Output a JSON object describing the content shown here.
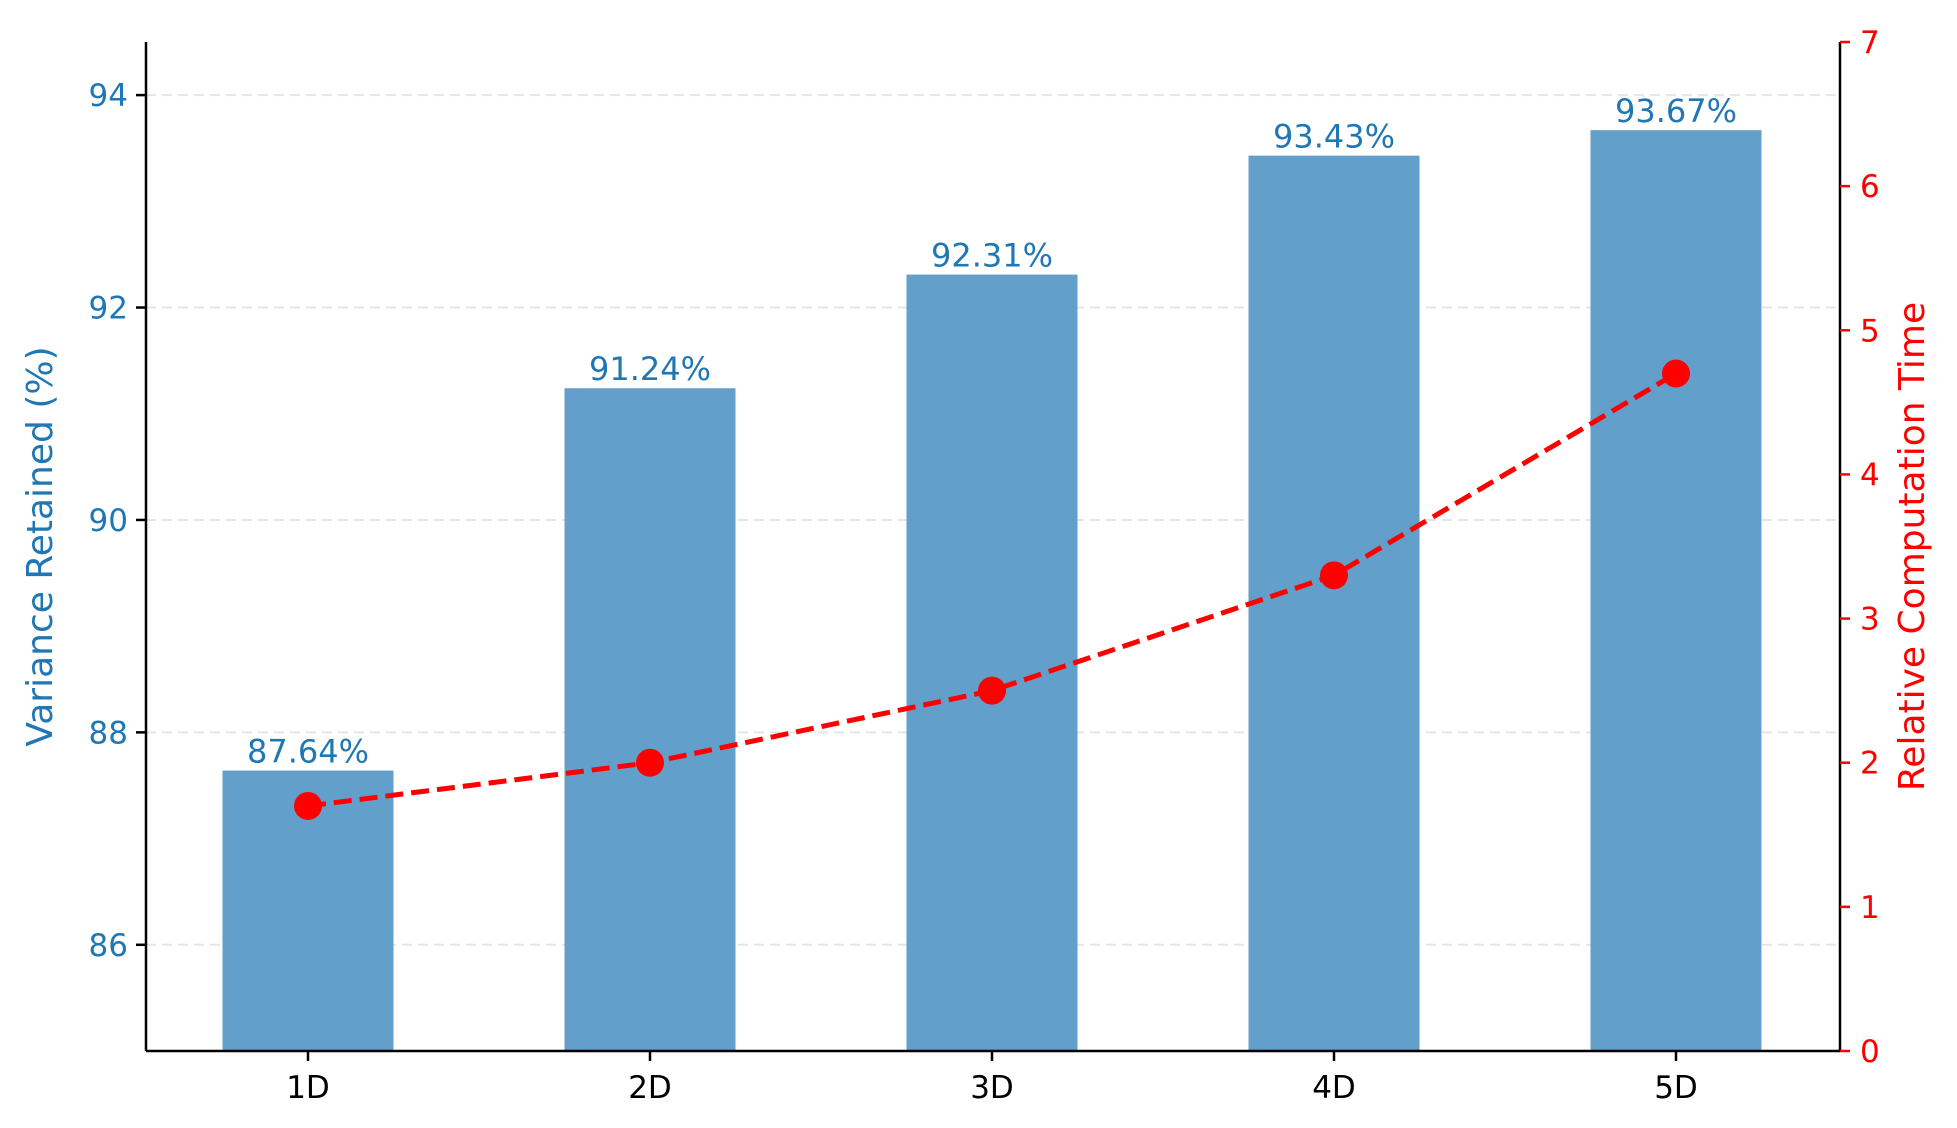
{
  "chart_data": {
    "type": "bar",
    "categories": [
      "1D",
      "2D",
      "3D",
      "4D",
      "5D"
    ],
    "series": [
      {
        "values": [
          87.64,
          91.24,
          92.31,
          93.43,
          93.67
        ],
        "axis": "left",
        "chart_type": "bar",
        "data_labels": [
          "87.64%",
          "91.24%",
          "92.31%",
          "93.43%",
          "93.67%"
        ]
      },
      {
        "values": [
          1.7,
          2.0,
          2.5,
          3.3,
          4.7
        ],
        "axis": "right",
        "chart_type": "line"
      }
    ],
    "title": "",
    "xlabel": "",
    "ylabel": "Variance Retained (%)",
    "y2label": "Relative Computation Time",
    "ylim": [
      85,
      94.5
    ],
    "y2lim": [
      0,
      7
    ],
    "yticks": [
      "86",
      "88",
      "90",
      "92",
      "94"
    ],
    "y2ticks": [
      "0",
      "1",
      "2",
      "3",
      "4",
      "5",
      "6",
      "7"
    ],
    "grid": "horizontal-dashed",
    "legend": "none",
    "colors": {
      "bar": "#629fca",
      "left_axis": "#1f77b4",
      "line": "#ff0000",
      "axis": "#000000",
      "grid": "#e5e5e5"
    }
  }
}
